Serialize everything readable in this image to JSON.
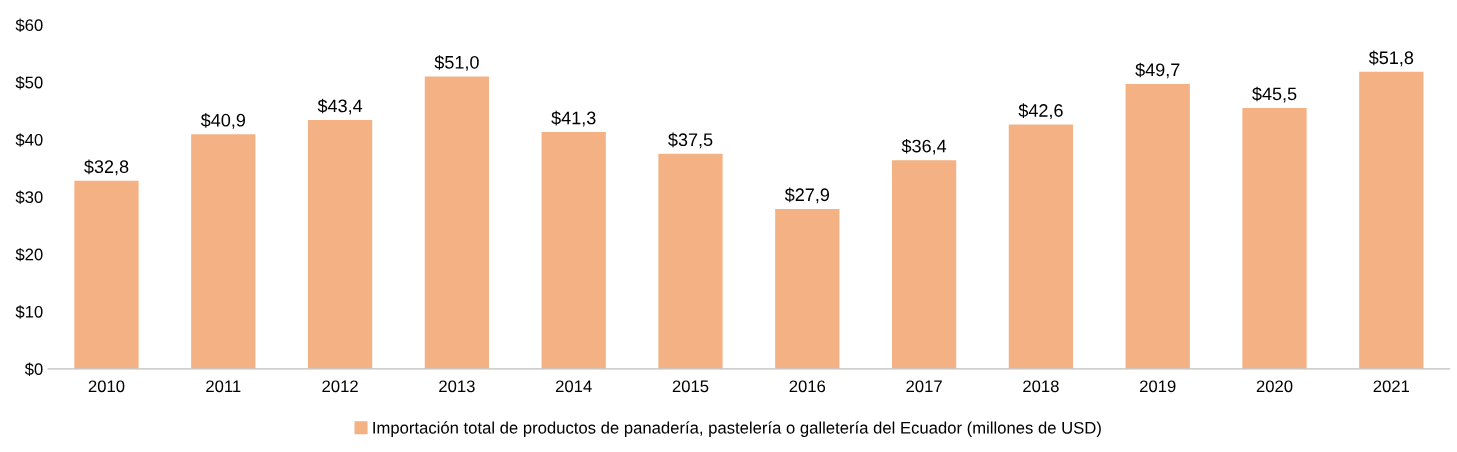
{
  "chart_data": {
    "type": "bar",
    "categories": [
      "2010",
      "2011",
      "2012",
      "2013",
      "2014",
      "2015",
      "2016",
      "2017",
      "2018",
      "2019",
      "2020",
      "2021"
    ],
    "series": [
      {
        "name": "Importación total de productos de panadería, pastelería o galletería del Ecuador (millones de USD)",
        "color": "#f4b183",
        "values": [
          32.8,
          40.9,
          43.4,
          51.0,
          41.3,
          37.5,
          27.9,
          36.4,
          42.6,
          49.7,
          45.5,
          51.8
        ],
        "value_labels": [
          "$32,8",
          "$40,9",
          "$43,4",
          "$51,0",
          "$41,3",
          "$37,5",
          "$27,9",
          "$36,4",
          "$42,6",
          "$49,7",
          "$45,5",
          "$51,8"
        ]
      }
    ],
    "ylim": [
      0,
      60
    ],
    "yticks": [
      {
        "value": 0,
        "label": "$0"
      },
      {
        "value": 10,
        "label": "$10"
      },
      {
        "value": 20,
        "label": "$20"
      },
      {
        "value": 30,
        "label": "$30"
      },
      {
        "value": 40,
        "label": "$40"
      },
      {
        "value": 50,
        "label": "$50"
      },
      {
        "value": 60,
        "label": "$60"
      }
    ],
    "grid": false,
    "legend": "bottom"
  }
}
